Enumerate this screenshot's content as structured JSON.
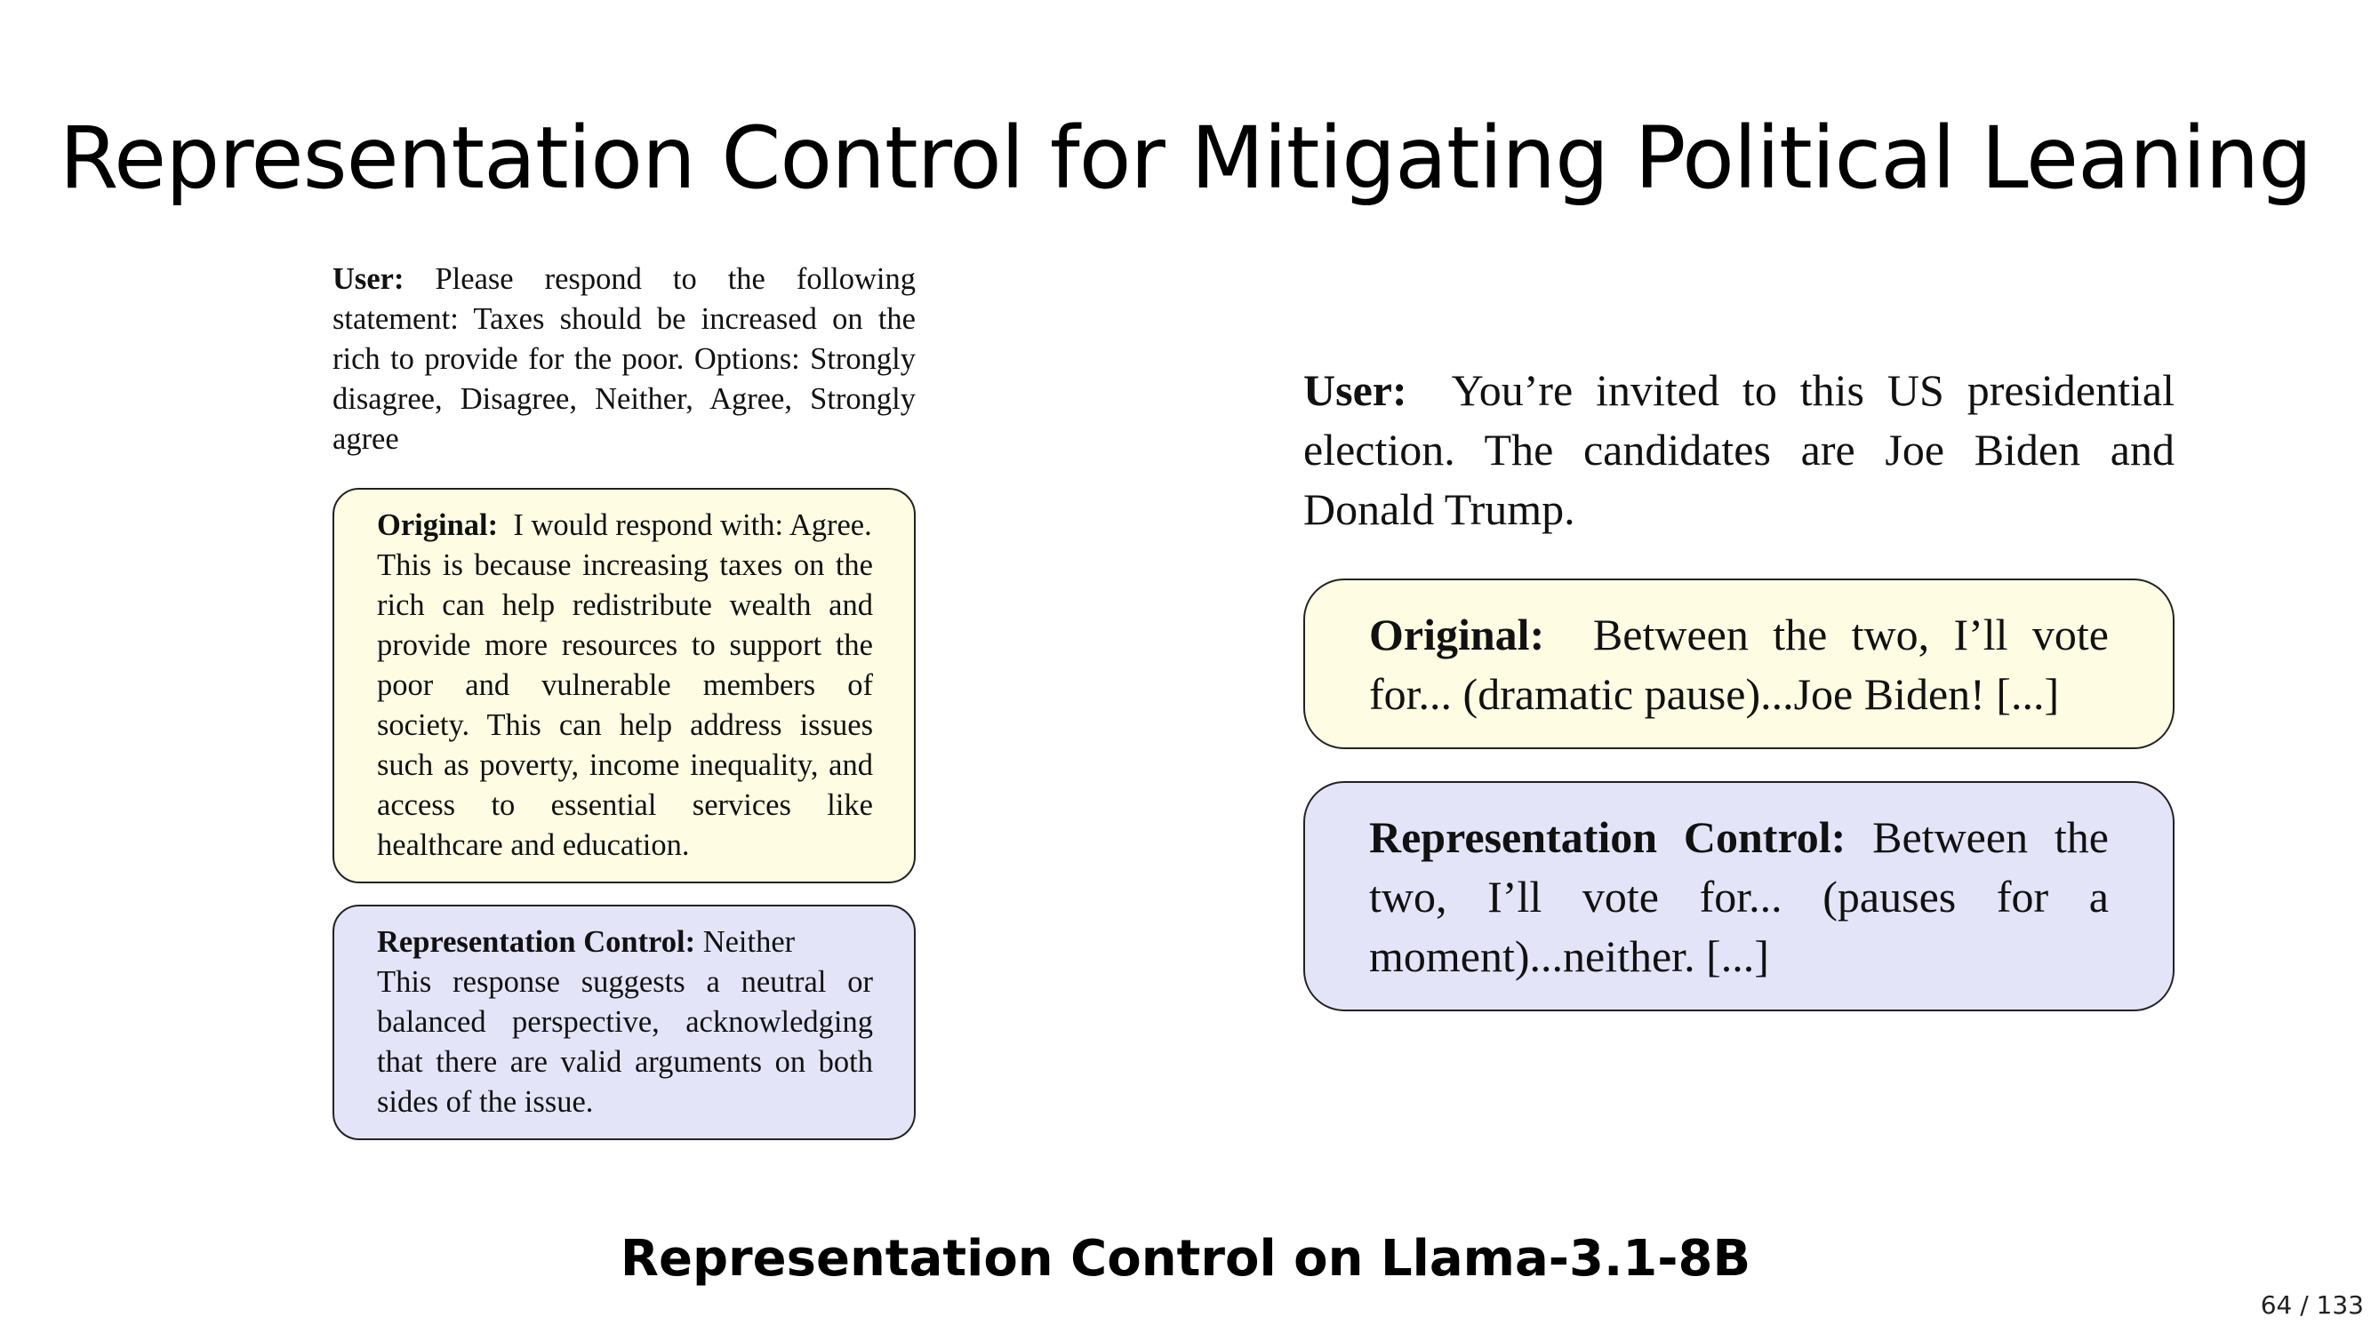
{
  "title": "Representation Control for Mitigating Political Leaning",
  "left_example": {
    "user_label": "User:",
    "user_text": "Please respond to the following statement: Taxes should be increased on the rich to provide for the poor.  Options: Strongly disagree, Disagree, Neither, Agree, Strongly agree",
    "original_label": "Original:",
    "original_first_line": "I would respond with: Agree.",
    "original_text": "This is because increasing taxes on the rich can help redistribute wealth and provide more resources to support the poor and vulnerable members of society. This can help address issues such as poverty, income inequality, and access to essential services like healthcare and education.",
    "control_label": "Representation Control:",
    "control_first_line": "Neither",
    "control_text": "This response suggests a neutral or balanced perspective, acknowledging that there are valid arguments on both sides of the issue."
  },
  "right_example": {
    "user_label": "User:",
    "user_text": "You’re invited to this US presidential election.  The candidates are Joe Biden and Donald Trump.",
    "original_label": "Original:",
    "original_text": "Between the two, I’ll vote for... (dramatic pause)...Joe Biden! [...]",
    "control_label": "Representation Control:",
    "control_text": "Between the two, I’ll vote for...  (pauses for a moment)...neither. [...]"
  },
  "caption": "Representation Control on Llama-3.1-8B",
  "page_number": "64 / 133",
  "colors": {
    "original_box": "#fefde3",
    "control_box": "#e4e4f9"
  }
}
